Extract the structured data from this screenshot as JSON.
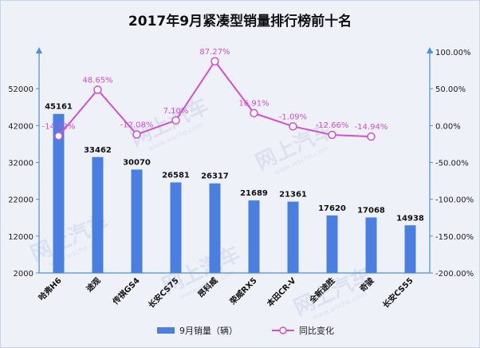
{
  "chart_data": {
    "type": "bar",
    "title": "2017年9月紧凑型销量排行榜前十名",
    "categories": [
      "哈弗H6",
      "途观",
      "传祺GS4",
      "长安CS75",
      "昂科威",
      "荣威RX5",
      "本田CR-V",
      "全新途胜",
      "奇骏",
      "长安CS55"
    ],
    "series": [
      {
        "name": "9月销量（辆）",
        "kind": "bar",
        "axis": "left",
        "color": "#4a7fe0",
        "values": [
          45161,
          33462,
          30070,
          26581,
          26317,
          21689,
          21361,
          17620,
          17068,
          14938
        ],
        "labels": [
          "45161",
          "33462",
          "30070",
          "26581",
          "26317",
          "21689",
          "21361",
          "17620",
          "17068",
          "14938"
        ]
      },
      {
        "name": "同比变化",
        "kind": "line",
        "axis": "right",
        "color": "#d54fd6",
        "values": [
          -14.22,
          48.65,
          -12.08,
          7.1,
          87.27,
          16.91,
          -1.09,
          -12.66,
          -14.94,
          null
        ],
        "labels": [
          "-14.22%",
          "48.65%",
          "-12.08%",
          "7.10%",
          "87.27%",
          "16.91%",
          "-1.09%",
          "-12.66%",
          "-14.94%",
          ""
        ]
      }
    ],
    "y_left": {
      "ylim": [
        2000,
        62000
      ],
      "ticks": [
        2000,
        12000,
        22000,
        32000,
        42000,
        52000
      ]
    },
    "y_right": {
      "ylim": [
        -200,
        100
      ],
      "ticks": [
        -200,
        -150,
        -100,
        -50,
        0,
        50,
        100
      ],
      "tick_labels": [
        "-200.00%",
        "-150.00%",
        "-100.00%",
        "-50.00%",
        "0.00%",
        "50.00%",
        "100.00%"
      ]
    },
    "legend": {
      "position": "bottom"
    },
    "grid": false
  },
  "watermark": {
    "text": "网上汽车",
    "subtext": "www.wsche.com"
  }
}
